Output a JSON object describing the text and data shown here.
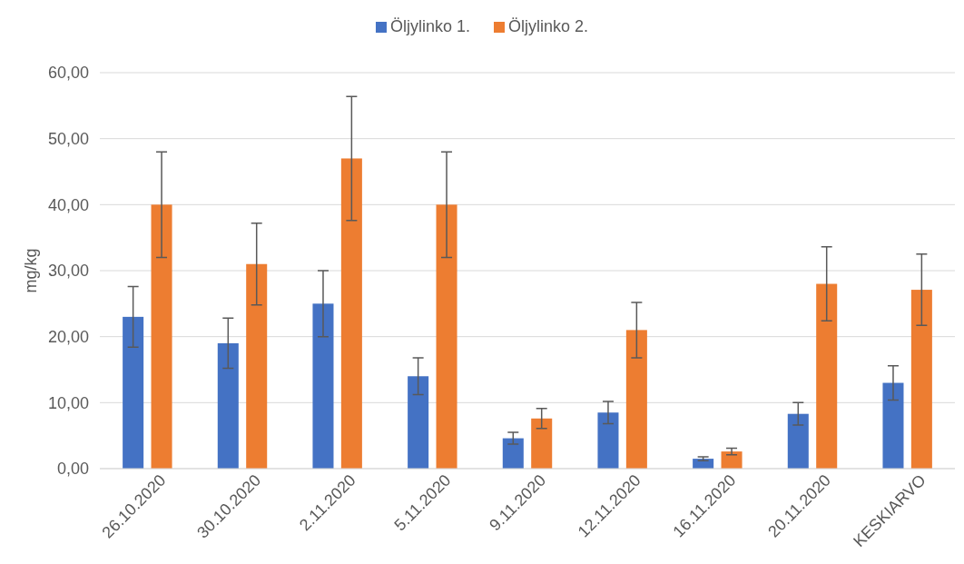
{
  "chart_data": {
    "type": "bar",
    "ylabel": "mg/kg",
    "categories": [
      "26.10.2020",
      "30.10.2020",
      "2.11.2020",
      "5.11.2020",
      "9.11.2020",
      "12.11.2020",
      "16.11.2020",
      "20.11.2020",
      "KESKIARVO"
    ],
    "series": [
      {
        "name": "Öljylinko 1.",
        "color": "#4472c4",
        "values": [
          23,
          19,
          25,
          14,
          4.6,
          8.5,
          1.5,
          8.3,
          13
        ],
        "errors": [
          4.6,
          3.8,
          5,
          2.8,
          0.9,
          1.7,
          0.3,
          1.7,
          2.6
        ]
      },
      {
        "name": "Öljylinko 2.",
        "color": "#ed7d31",
        "values": [
          40,
          31,
          47,
          40,
          7.6,
          21,
          2.6,
          28,
          27.1
        ],
        "errors": [
          8,
          6.2,
          9.4,
          8,
          1.5,
          4.2,
          0.5,
          5.6,
          5.4
        ]
      }
    ],
    "ylim": [
      0,
      60
    ],
    "yticks": [
      {
        "value": 0,
        "label": "0,00"
      },
      {
        "value": 10,
        "label": "10,00"
      },
      {
        "value": 20,
        "label": "20,00"
      },
      {
        "value": 30,
        "label": "30,00"
      },
      {
        "value": 40,
        "label": "40,00"
      },
      {
        "value": 50,
        "label": "50,00"
      },
      {
        "value": 60,
        "label": "60,00"
      }
    ],
    "grid": "y",
    "legend": "top"
  }
}
